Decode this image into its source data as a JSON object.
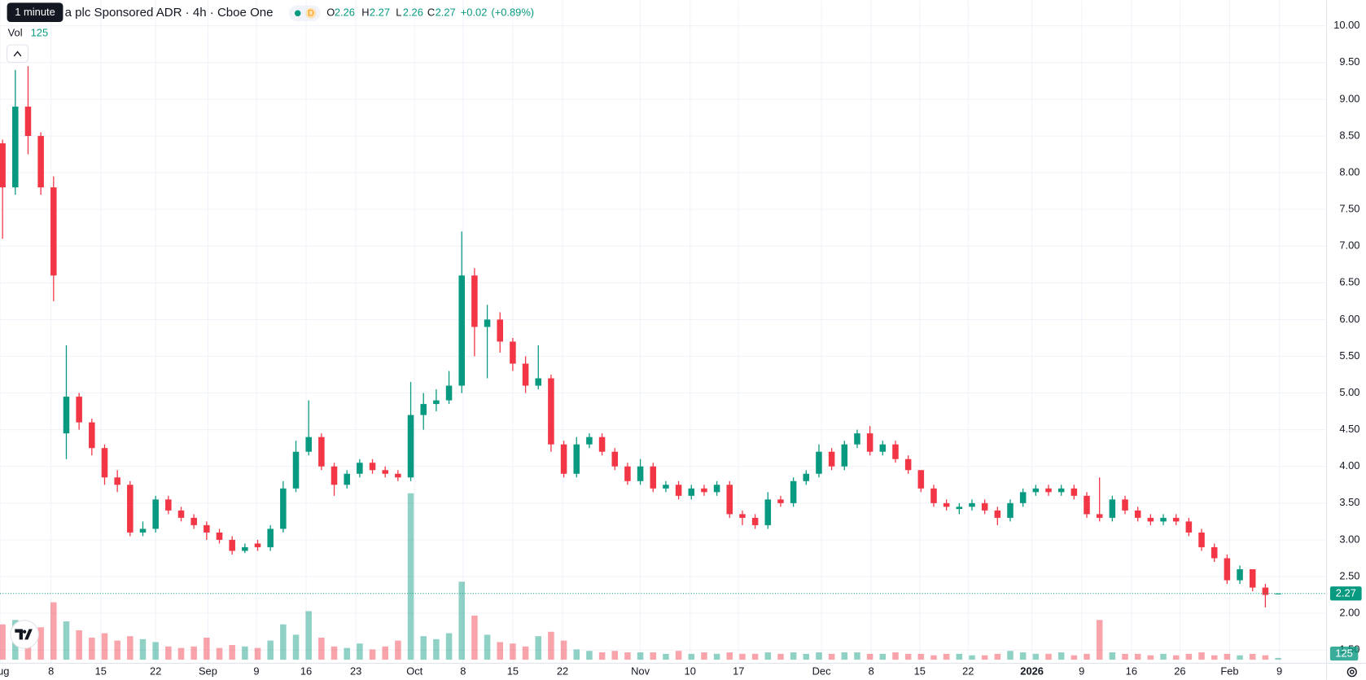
{
  "chart_data": {
    "type": "candlestick",
    "title": "a plc Sponsored ADR · 4h · Cboe One",
    "tooltip": "1 minute",
    "badge": "D",
    "legend": {
      "open_label": "O",
      "open": 2.26,
      "high_label": "H",
      "high": 2.27,
      "low_label": "L",
      "low": 2.26,
      "close_label": "C",
      "close": 2.27,
      "change": "+0.02",
      "change_pct": "(+0.89%)"
    },
    "volume_label": "Vol",
    "up_color": "#089981",
    "down_color": "#f23645",
    "grid": true,
    "xlim": [
      -0.2,
      103.8
    ],
    "ylim": [
      1.32,
      10.35
    ],
    "xticks": [
      {
        "value": -0.2,
        "label": "Aug"
      },
      {
        "value": 3.8,
        "label": "8"
      },
      {
        "value": 7.7,
        "label": "15"
      },
      {
        "value": 12.0,
        "label": "22"
      },
      {
        "value": 16.1,
        "label": "Sep"
      },
      {
        "value": 19.9,
        "label": "9"
      },
      {
        "value": 23.8,
        "label": "16"
      },
      {
        "value": 27.7,
        "label": "23"
      },
      {
        "value": 32.3,
        "label": "Oct"
      },
      {
        "value": 36.1,
        "label": "8"
      },
      {
        "value": 40.0,
        "label": "15"
      },
      {
        "value": 43.9,
        "label": "22"
      },
      {
        "value": 50.0,
        "label": "Nov"
      },
      {
        "value": 53.9,
        "label": "10"
      },
      {
        "value": 57.7,
        "label": "17"
      },
      {
        "value": 64.2,
        "label": "Dec"
      },
      {
        "value": 68.1,
        "label": "8"
      },
      {
        "value": 71.9,
        "label": "15"
      },
      {
        "value": 75.7,
        "label": "22"
      },
      {
        "value": 80.7,
        "label": "2026"
      },
      {
        "value": 84.6,
        "label": "9"
      },
      {
        "value": 88.5,
        "label": "16"
      },
      {
        "value": 92.3,
        "label": "26"
      },
      {
        "value": 96.2,
        "label": "Feb"
      },
      {
        "value": 100.1,
        "label": "9"
      }
    ],
    "yticks": [
      {
        "value": 1.5,
        "label": "1.50"
      },
      {
        "value": 2,
        "label": "2.00"
      },
      {
        "value": 2.5,
        "label": "2.50"
      },
      {
        "value": 3,
        "label": "3.00"
      },
      {
        "value": 3.5,
        "label": "3.50"
      },
      {
        "value": 4,
        "label": "4.00"
      },
      {
        "value": 4.5,
        "label": "4.50"
      },
      {
        "value": 5,
        "label": "5.00"
      },
      {
        "value": 5.5,
        "label": "5.50"
      },
      {
        "value": 6,
        "label": "6.00"
      },
      {
        "value": 6.5,
        "label": "6.50"
      },
      {
        "value": 7,
        "label": "7.00"
      },
      {
        "value": 7.5,
        "label": "7.50"
      },
      {
        "value": 8,
        "label": "8.00"
      },
      {
        "value": 8.5,
        "label": "8.50"
      },
      {
        "value": 9,
        "label": "9.00"
      },
      {
        "value": 9.5,
        "label": "9.50"
      },
      {
        "value": 10,
        "label": "10.00"
      }
    ],
    "open": [
      8.4,
      7.8,
      8.9,
      8.5,
      7.8,
      4.45,
      4.95,
      4.6,
      4.25,
      3.85,
      3.75,
      3.1,
      3.15,
      3.55,
      3.4,
      3.3,
      3.2,
      3.1,
      3.0,
      2.85,
      2.95,
      2.9,
      3.15,
      3.7,
      4.2,
      4.4,
      4.0,
      3.75,
      3.9,
      4.05,
      3.95,
      3.9,
      3.85,
      4.7,
      4.85,
      4.9,
      5.1,
      6.6,
      5.9,
      6.0,
      5.7,
      5.4,
      5.1,
      5.2,
      4.3,
      3.9,
      4.3,
      4.4,
      4.2,
      4.0,
      3.8,
      4.0,
      3.7,
      3.75,
      3.6,
      3.7,
      3.65,
      3.75,
      3.35,
      3.3,
      3.2,
      3.55,
      3.5,
      3.8,
      3.9,
      4.2,
      4.0,
      4.3,
      4.45,
      4.2,
      4.3,
      4.1,
      3.95,
      3.7,
      3.5,
      3.42,
      3.45,
      3.5,
      3.4,
      3.3,
      3.5,
      3.65,
      3.7,
      3.65,
      3.7,
      3.6,
      3.35,
      3.3,
      3.55,
      3.4,
      3.3,
      3.25,
      3.3,
      3.25,
      3.1,
      2.9,
      2.75,
      2.45,
      2.6,
      2.35,
      2.26
    ],
    "high": [
      8.45,
      9.4,
      9.45,
      8.55,
      7.95,
      5.65,
      5.0,
      4.65,
      4.3,
      3.95,
      3.8,
      3.25,
      3.6,
      3.6,
      3.45,
      3.35,
      3.25,
      3.15,
      3.05,
      2.95,
      3.0,
      3.2,
      3.8,
      4.35,
      4.9,
      4.45,
      4.05,
      3.95,
      4.1,
      4.1,
      4.0,
      3.95,
      5.15,
      5.0,
      5.05,
      5.3,
      7.2,
      6.7,
      6.2,
      6.1,
      5.75,
      5.5,
      5.65,
      5.25,
      4.35,
      4.4,
      4.45,
      4.45,
      4.25,
      4.05,
      4.1,
      4.05,
      3.8,
      3.8,
      3.75,
      3.75,
      3.8,
      3.8,
      3.4,
      3.35,
      3.65,
      3.6,
      3.85,
      3.95,
      4.3,
      4.25,
      4.35,
      4.5,
      4.55,
      4.35,
      4.35,
      4.15,
      3.95,
      3.75,
      3.55,
      3.5,
      3.55,
      3.55,
      3.45,
      3.55,
      3.7,
      3.75,
      3.75,
      3.75,
      3.75,
      3.65,
      3.85,
      3.6,
      3.6,
      3.45,
      3.35,
      3.35,
      3.35,
      3.3,
      3.15,
      2.95,
      2.8,
      2.65,
      2.6,
      2.4,
      2.27
    ],
    "low": [
      7.1,
      7.7,
      8.25,
      7.7,
      6.25,
      4.1,
      4.5,
      4.15,
      3.75,
      3.65,
      3.05,
      3.05,
      3.1,
      3.35,
      3.25,
      3.15,
      3.0,
      2.95,
      2.8,
      2.82,
      2.85,
      2.85,
      3.1,
      3.65,
      4.15,
      3.95,
      3.6,
      3.7,
      3.85,
      3.9,
      3.85,
      3.8,
      3.8,
      4.5,
      4.75,
      4.85,
      5.0,
      5.5,
      5.2,
      5.55,
      5.3,
      5.0,
      5.05,
      4.2,
      3.85,
      3.85,
      4.25,
      4.15,
      3.95,
      3.75,
      3.75,
      3.65,
      3.65,
      3.55,
      3.55,
      3.6,
      3.6,
      3.3,
      3.2,
      3.15,
      3.15,
      3.45,
      3.45,
      3.75,
      3.85,
      3.95,
      3.95,
      4.25,
      4.15,
      4.15,
      4.05,
      3.9,
      3.65,
      3.45,
      3.4,
      3.35,
      3.4,
      3.35,
      3.2,
      3.25,
      3.45,
      3.6,
      3.6,
      3.6,
      3.55,
      3.3,
      3.25,
      3.25,
      3.35,
      3.25,
      3.2,
      3.2,
      3.2,
      3.05,
      2.85,
      2.7,
      2.4,
      2.4,
      2.3,
      2.08,
      2.26
    ],
    "close": [
      7.8,
      8.9,
      8.5,
      7.8,
      6.6,
      4.95,
      4.6,
      4.25,
      3.85,
      3.75,
      3.1,
      3.15,
      3.55,
      3.4,
      3.3,
      3.2,
      3.1,
      3.0,
      2.85,
      2.9,
      2.9,
      3.15,
      3.7,
      4.2,
      4.4,
      4.0,
      3.75,
      3.9,
      4.05,
      3.95,
      3.9,
      3.85,
      4.7,
      4.85,
      4.9,
      5.1,
      6.6,
      5.9,
      6.0,
      5.7,
      5.4,
      5.1,
      5.2,
      4.3,
      3.9,
      4.3,
      4.4,
      4.2,
      4.0,
      3.8,
      4.0,
      3.7,
      3.75,
      3.6,
      3.7,
      3.65,
      3.75,
      3.35,
      3.3,
      3.2,
      3.55,
      3.5,
      3.8,
      3.9,
      4.2,
      4.0,
      4.3,
      4.45,
      4.2,
      4.3,
      4.1,
      3.95,
      3.7,
      3.5,
      3.45,
      3.45,
      3.5,
      3.4,
      3.3,
      3.5,
      3.65,
      3.7,
      3.65,
      3.7,
      3.6,
      3.35,
      3.3,
      3.55,
      3.4,
      3.3,
      3.25,
      3.3,
      3.25,
      3.1,
      2.9,
      2.75,
      2.45,
      2.6,
      2.35,
      2.25,
      2.27
    ],
    "volume": [
      2400,
      2700,
      1800,
      2200,
      3900,
      2600,
      2000,
      1500,
      1800,
      1300,
      1600,
      1400,
      1200,
      900,
      800,
      900,
      1500,
      800,
      1000,
      900,
      800,
      1300,
      2400,
      1700,
      3300,
      1500,
      900,
      800,
      1100,
      700,
      900,
      1300,
      11300,
      1600,
      1400,
      1800,
      5300,
      3000,
      1700,
      1200,
      1100,
      900,
      1600,
      1900,
      1300,
      700,
      600,
      500,
      600,
      500,
      500,
      500,
      400,
      600,
      400,
      500,
      400,
      500,
      400,
      400,
      500,
      400,
      500,
      400,
      500,
      400,
      500,
      500,
      400,
      400,
      500,
      400,
      400,
      300,
      400,
      400,
      300,
      300,
      400,
      600,
      500,
      400,
      400,
      500,
      300,
      400,
      2700,
      500,
      400,
      400,
      300,
      400,
      300,
      400,
      500,
      300,
      400,
      300,
      400,
      300,
      125
    ]
  }
}
